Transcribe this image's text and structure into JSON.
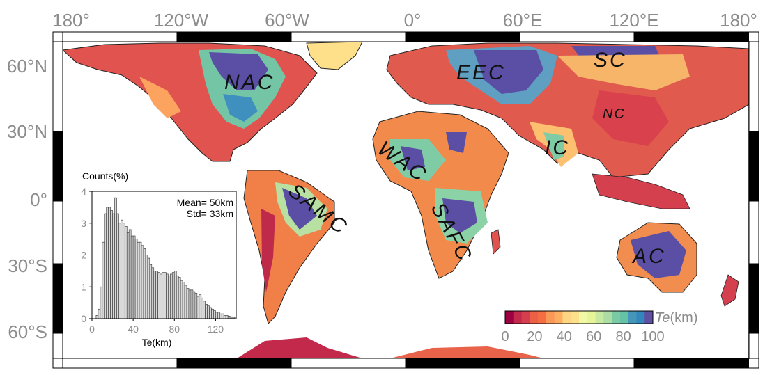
{
  "map": {
    "lon_labels": [
      "180°",
      "120°W",
      "60°W",
      "0°",
      "60°E",
      "120°E",
      "180°"
    ],
    "lat_labels": [
      "60°N",
      "30°N",
      "0°",
      "30°S",
      "60°S"
    ],
    "regions": [
      "NAC",
      "EEC",
      "SC",
      "NC",
      "WAC",
      "IC",
      "SAMC",
      "SAFC",
      "AC"
    ]
  },
  "colorbar": {
    "title_italic": "Te",
    "title_unit": "(km)",
    "ticks": [
      "0",
      "20",
      "40",
      "60",
      "80",
      "100"
    ],
    "colors": [
      "#9e0142",
      "#c2294a",
      "#d53e4f",
      "#ec6146",
      "#f46d43",
      "#fa9857",
      "#fdae61",
      "#fed582",
      "#fee08b",
      "#f1f8a6",
      "#e6f598",
      "#c7e9a0",
      "#abdda4",
      "#7acba5",
      "#66c2a5",
      "#4596b8",
      "#3288bd",
      "#5e4fa2"
    ]
  },
  "chart_data": {
    "type": "bar",
    "ylabel": "Counts(%)",
    "xlabel": "Te(km)",
    "annotation_mean": "Mean= 50km",
    "annotation_std": "Std= 33km",
    "xlim": [
      0,
      140
    ],
    "ylim": [
      0,
      4
    ],
    "xticks": [
      "0",
      "40",
      "80",
      "120"
    ],
    "yticks": [
      "0",
      "1",
      "2",
      "3",
      "4"
    ],
    "bin_width": 2,
    "x": [
      5,
      7,
      9,
      11,
      13,
      15,
      17,
      19,
      21,
      23,
      25,
      27,
      29,
      31,
      33,
      35,
      37,
      39,
      41,
      43,
      45,
      47,
      49,
      51,
      53,
      55,
      57,
      59,
      61,
      63,
      65,
      67,
      69,
      71,
      73,
      75,
      77,
      79,
      81,
      83,
      85,
      87,
      89,
      91,
      93,
      95,
      97,
      99,
      101,
      103,
      105,
      107,
      109,
      111,
      113,
      115,
      117,
      119,
      121,
      123,
      125,
      127,
      129,
      131,
      133,
      135,
      137,
      139
    ],
    "values": [
      0.1,
      0.3,
      1.0,
      2.4,
      3.3,
      3.5,
      3.5,
      3.4,
      3.3,
      3.8,
      3.3,
      3.0,
      3.1,
      3.0,
      2.9,
      2.7,
      2.8,
      2.6,
      2.6,
      2.5,
      2.4,
      2.4,
      2.3,
      2.2,
      2.0,
      1.9,
      1.7,
      1.6,
      1.5,
      1.5,
      1.45,
      1.4,
      1.45,
      1.45,
      1.4,
      1.35,
      1.4,
      1.45,
      1.5,
      1.35,
      1.3,
      1.2,
      1.15,
      1.05,
      0.95,
      0.9,
      0.9,
      0.85,
      0.8,
      0.7,
      0.75,
      0.65,
      0.55,
      0.45,
      0.4,
      0.35,
      0.3,
      0.25,
      0.2,
      0.2,
      0.15,
      0.15,
      0.1,
      0.1,
      0.08,
      0.06,
      0.05,
      0.04
    ]
  }
}
